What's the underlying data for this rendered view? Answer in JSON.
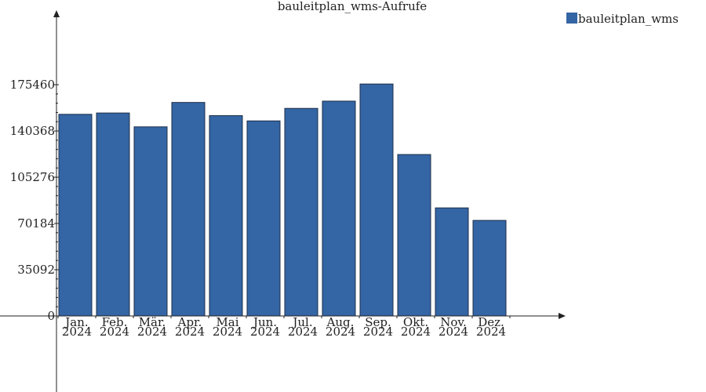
{
  "chart_data": {
    "type": "bar",
    "title": "bauleitplan_wms-Aufrufe",
    "categories": [
      [
        "Jan.",
        "2024"
      ],
      [
        "Feb.",
        "2024"
      ],
      [
        "Mär.",
        "2024"
      ],
      [
        "Apr.",
        "2024"
      ],
      [
        "Mai",
        "2024"
      ],
      [
        "Jun.",
        "2024"
      ],
      [
        "Jul.",
        "2024"
      ],
      [
        "Aug.",
        "2024"
      ],
      [
        "Sep.",
        "2024"
      ],
      [
        "Okt.",
        "2024"
      ],
      [
        "Nov.",
        "2024"
      ],
      [
        "Dez.",
        "2024"
      ]
    ],
    "series": [
      {
        "name": "bauleitplan_wms",
        "color": "#3465a4",
        "values": [
          153000,
          154000,
          143500,
          162000,
          152000,
          148000,
          157500,
          163000,
          176000,
          122500,
          82000,
          72500
        ]
      }
    ],
    "yticks": [
      0,
      35092,
      70184,
      105276,
      140368,
      175460
    ],
    "ylim": [
      0,
      232000
    ],
    "legend_position": "top-right"
  }
}
